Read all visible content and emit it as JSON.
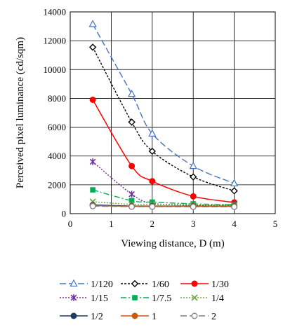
{
  "chart_data": {
    "type": "line",
    "title": "",
    "xlabel": "Viewing distance, D (m)",
    "ylabel": "Perceived pixel luminance (cd/sqm)",
    "xlim": [
      0,
      5
    ],
    "ylim": [
      0,
      14000
    ],
    "x_ticks": [
      "0",
      "1",
      "2",
      "3",
      "4",
      "5"
    ],
    "y_ticks": [
      "0",
      "2000",
      "4000",
      "6000",
      "8000",
      "10000",
      "12000",
      "14000"
    ],
    "grid": true,
    "legend_placement": "bottom",
    "x": [
      0.55,
      1.5,
      2.0,
      3.0,
      4.0
    ],
    "series": [
      {
        "name": "1/120",
        "values": [
          13150,
          8300,
          5550,
          3300,
          2100
        ],
        "color": "#4472c4",
        "dash": "long-dash",
        "marker": "triangle-open",
        "smooth": true
      },
      {
        "name": "1/60",
        "values": [
          11550,
          6350,
          4330,
          2550,
          1580
        ],
        "color": "#000000",
        "dash": "short-dash",
        "marker": "diamond-open",
        "smooth": true
      },
      {
        "name": "1/30",
        "values": [
          7900,
          3300,
          2250,
          1200,
          780
        ],
        "color": "#ff0000",
        "dash": "solid",
        "marker": "circle-filled",
        "smooth": true
      },
      {
        "name": "1/15",
        "values": [
          3600,
          1350,
          720,
          600,
          640
        ],
        "color": "#7030a0",
        "dash": "dot",
        "marker": "star",
        "smooth": true
      },
      {
        "name": "1/7.5",
        "values": [
          1650,
          900,
          800,
          680,
          610
        ],
        "color": "#00b050",
        "dash": "dash-dot",
        "marker": "square-filled",
        "smooth": true
      },
      {
        "name": "1/4",
        "values": [
          830,
          640,
          640,
          620,
          570
        ],
        "color": "#70ad47",
        "dash": "dot",
        "marker": "x",
        "smooth": true
      },
      {
        "name": "1/2",
        "values": [
          600,
          520,
          520,
          520,
          520
        ],
        "color": "#1f3864",
        "dash": "solid",
        "marker": "circle-filled",
        "smooth": false
      },
      {
        "name": "1",
        "values": [
          560,
          500,
          500,
          500,
          500
        ],
        "color": "#c55a11",
        "dash": "solid",
        "marker": "circle-filled",
        "smooth": false
      },
      {
        "name": "2",
        "values": [
          520,
          480,
          480,
          470,
          470
        ],
        "color": "#7f7f7f",
        "dash": "long-dash",
        "marker": "circle-open",
        "smooth": false
      }
    ]
  }
}
